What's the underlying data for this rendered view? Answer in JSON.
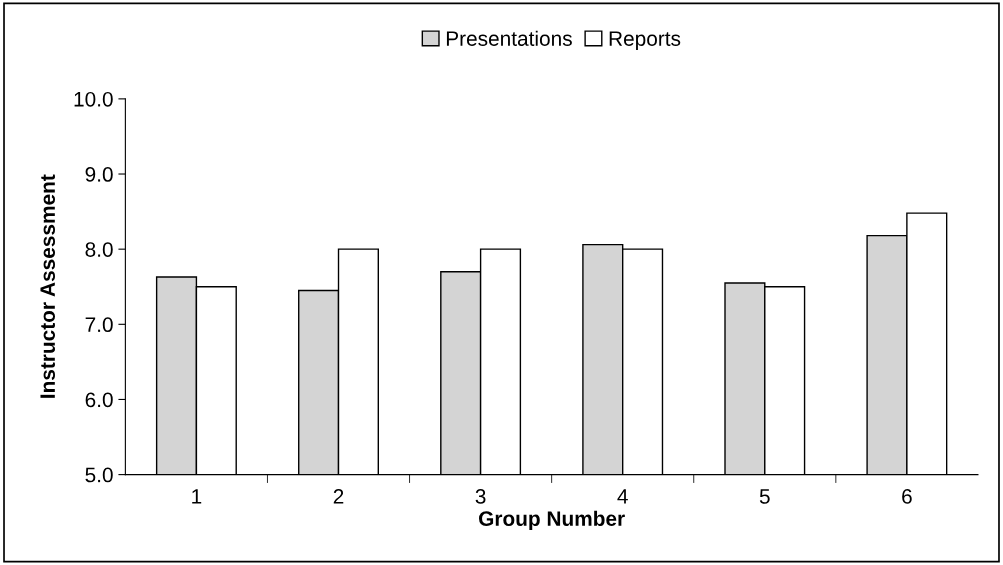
{
  "chart_data": {
    "type": "bar",
    "xlabel": "Group Number",
    "ylabel": "Instructor Assessment",
    "categories": [
      "1",
      "2",
      "3",
      "4",
      "5",
      "6"
    ],
    "series": [
      {
        "name": "Presentations",
        "color": "#d4d4d4",
        "values": [
          7.63,
          7.45,
          7.7,
          8.06,
          7.55,
          8.18
        ]
      },
      {
        "name": "Reports",
        "color": "#ffffff",
        "values": [
          7.5,
          8.0,
          8.0,
          8.0,
          7.5,
          8.48
        ]
      }
    ],
    "ylim": [
      5.0,
      10.0
    ],
    "yticks": [
      {
        "value": 5,
        "label": "5.0"
      },
      {
        "value": 6,
        "label": "6.0"
      },
      {
        "value": 7,
        "label": "7.0"
      },
      {
        "value": 8,
        "label": "8.0"
      },
      {
        "value": 9,
        "label": "9.0"
      },
      {
        "value": 10,
        "label": "10.0"
      }
    ],
    "grid": false,
    "legend": "top"
  }
}
